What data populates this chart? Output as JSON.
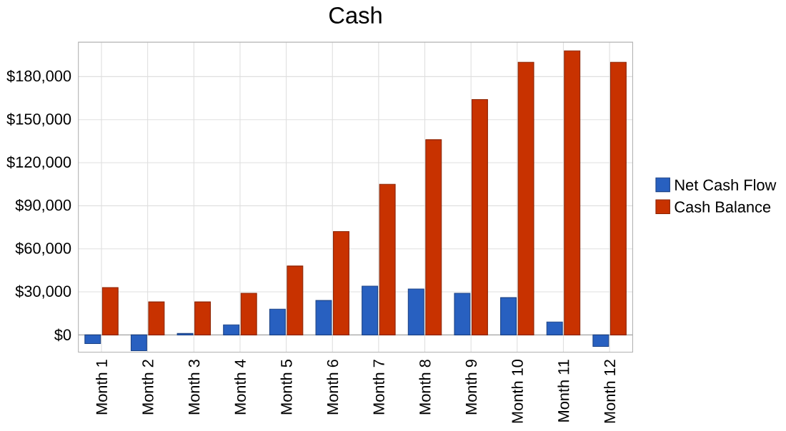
{
  "chart_data": {
    "type": "bar",
    "title": "Cash",
    "categories": [
      "Month 1",
      "Month 2",
      "Month 3",
      "Month 4",
      "Month 5",
      "Month 6",
      "Month 7",
      "Month 8",
      "Month 9",
      "Month 10",
      "Month 11",
      "Month 12"
    ],
    "series": [
      {
        "name": "Net Cash Flow",
        "color": "#2860c0",
        "values": [
          -6000,
          -11000,
          1000,
          7000,
          18000,
          24000,
          34000,
          32000,
          29000,
          26000,
          9000,
          -8000
        ]
      },
      {
        "name": "Cash Balance",
        "color": "#c83200",
        "values": [
          33000,
          23000,
          23000,
          29000,
          48000,
          72000,
          105000,
          136000,
          164000,
          190000,
          198000,
          190000
        ]
      }
    ],
    "ylim": [
      -12000,
      204000
    ],
    "yticks": [
      {
        "value": 0,
        "label": "$0"
      },
      {
        "value": 30000,
        "label": "$30,000"
      },
      {
        "value": 60000,
        "label": "$60,000"
      },
      {
        "value": 90000,
        "label": "$90,000"
      },
      {
        "value": 120000,
        "label": "$120,000"
      },
      {
        "value": 150000,
        "label": "$150,000"
      },
      {
        "value": 180000,
        "label": "$180,000"
      }
    ],
    "grid": true,
    "legend": "right"
  }
}
